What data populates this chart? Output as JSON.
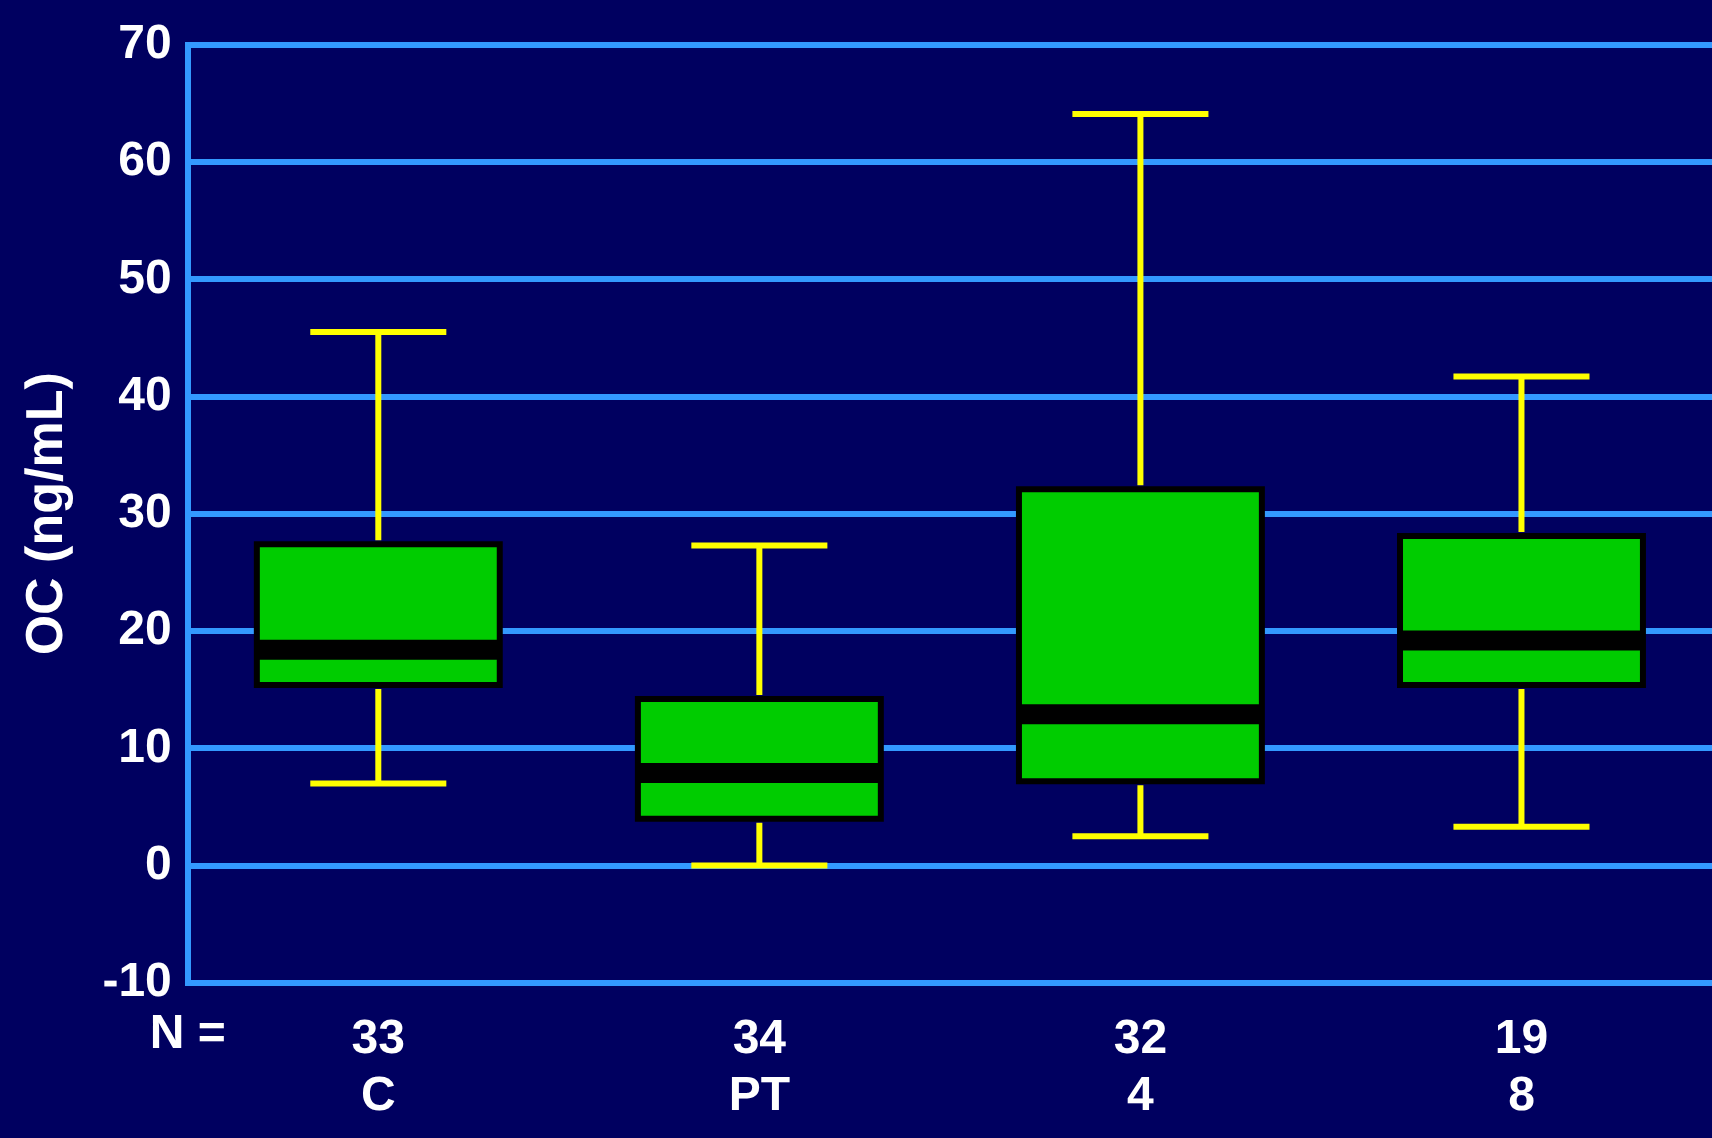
{
  "chart_data": {
    "type": "box",
    "ylabel": "OC (ng/mL)",
    "categories": [
      "33\nC",
      "34\nPT",
      "32\n4",
      "19\n8"
    ],
    "series": [
      {
        "color": "#00cc00",
        "boxes": [
          {
            "low": 7,
            "q1": 15.4,
            "median": 18.4,
            "q3": 27.4,
            "high": 45.5
          },
          {
            "low": 0,
            "q1": 4,
            "median": 7.9,
            "q3": 14.2,
            "high": 27.3
          },
          {
            "low": 2.5,
            "q1": 7.2,
            "median": 12.9,
            "q3": 32.1,
            "high": 64.1
          },
          {
            "low": 3.3,
            "q1": 15.4,
            "median": 19.2,
            "q3": 28.1,
            "high": 41.7
          }
        ]
      }
    ],
    "ylim": [
      -10,
      70
    ],
    "yticks": [
      -10,
      0,
      10,
      20,
      30,
      40,
      50,
      60,
      70
    ],
    "grid": "y",
    "legend": false,
    "annotations": [
      "N ="
    ]
  }
}
